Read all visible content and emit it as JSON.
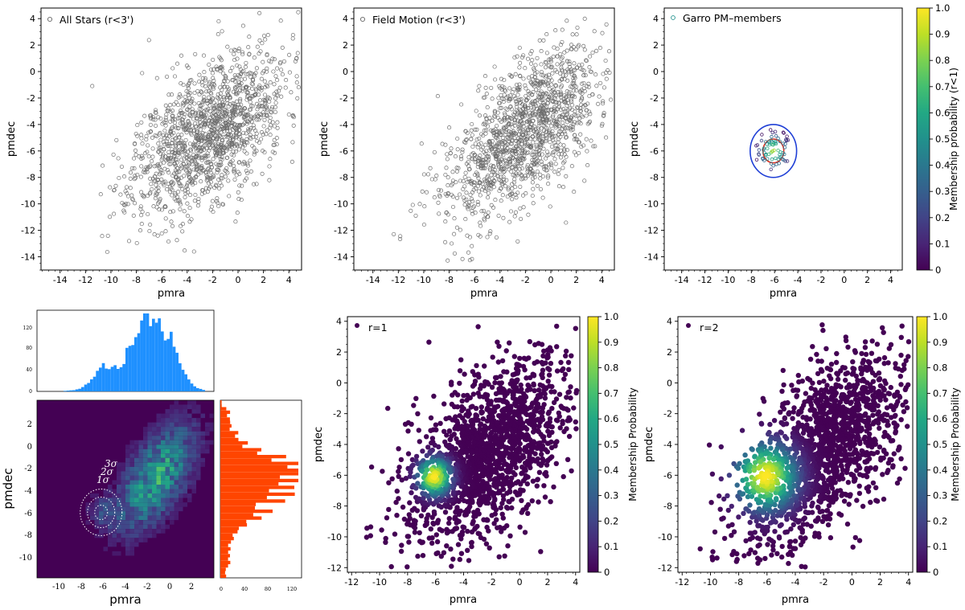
{
  "chart_data": [
    {
      "id": "p1",
      "type": "scatter",
      "legend": "All Stars (r<3')",
      "xlabel": "pmra",
      "ylabel": "pmdec",
      "xlim": [
        -15.5,
        5
      ],
      "ylim": [
        -15,
        4.8
      ],
      "xticks": [
        -14,
        -12,
        -10,
        -8,
        -6,
        -4,
        -2,
        0,
        2,
        4
      ],
      "yticks": [
        4,
        2,
        0,
        -2,
        -4,
        -6,
        -8,
        -10,
        -12,
        -14
      ],
      "cloud": {
        "n": 1500,
        "center": [
          -2.2,
          -4.6
        ],
        "sd": [
          3.0,
          3.1
        ],
        "corr": 0.55,
        "seed": 11
      },
      "marker": "open-circle-gray"
    },
    {
      "id": "p2",
      "type": "scatter",
      "legend": "Field Motion (r<3')",
      "xlabel": "pmra",
      "ylabel": "pmdec",
      "xlim": [
        -15.5,
        5
      ],
      "ylim": [
        -15,
        4.8
      ],
      "xticks": [
        -14,
        -12,
        -10,
        -8,
        -6,
        -4,
        -2,
        0,
        2,
        4
      ],
      "yticks": [
        4,
        2,
        0,
        -2,
        -4,
        -6,
        -8,
        -10,
        -12,
        -14
      ],
      "cloud": {
        "n": 1450,
        "center": [
          -2.0,
          -4.5
        ],
        "sd": [
          2.9,
          3.1
        ],
        "corr": 0.6,
        "seed": 22
      },
      "marker": "open-circle-gray"
    },
    {
      "id": "p3",
      "type": "scatter",
      "legend": "Garro PM–members",
      "xlabel": "pmra",
      "ylabel": "pmdec",
      "xlim": [
        -15.5,
        5
      ],
      "ylim": [
        -15,
        4.8
      ],
      "xticks": [
        -14,
        -12,
        -10,
        -8,
        -6,
        -4,
        -2,
        0,
        2,
        4
      ],
      "yticks": [
        4,
        2,
        0,
        -2,
        -4,
        -6,
        -8,
        -10,
        -12,
        -14
      ],
      "circles": [
        {
          "center": [
            -6.1,
            -6.0
          ],
          "radius": 2.0,
          "color": "#1f3fd6"
        },
        {
          "center": [
            -6.1,
            -6.0
          ],
          "radius": 0.9,
          "color": "#e03020"
        }
      ],
      "members": {
        "n": 85,
        "center": [
          -6.1,
          -6.0
        ],
        "sd": [
          0.8,
          0.8
        ],
        "seed": 33
      },
      "colorbar": {
        "label": "Membership probability (r<1)",
        "ticks": [
          "1.0",
          "0.9",
          "0.8",
          "0.7",
          "0.6",
          "0.5",
          "0.4",
          "0.3",
          "0.2",
          "0.1",
          "0"
        ]
      }
    },
    {
      "id": "p4_hist_top",
      "type": "bar",
      "color": "#1e90ff",
      "xlim": [
        -12,
        4
      ],
      "yticks": [
        "120",
        "80",
        "40",
        "0"
      ],
      "ylim": [
        0,
        150
      ]
    },
    {
      "id": "p4_main",
      "type": "heatmap",
      "xlabel": "pmra",
      "ylabel": "pmdec",
      "xlim": [
        -12,
        4
      ],
      "ylim": [
        -12,
        4
      ],
      "xticks": [
        "-10",
        "-8",
        "-6",
        "-4",
        "-2",
        "0",
        "2"
      ],
      "yticks": [
        "2",
        "0",
        "-2",
        "-4",
        "-6",
        "-8",
        "-10"
      ],
      "sigma_labels": [
        "3σ",
        "2σ",
        "1σ"
      ],
      "sigma_center": [
        -6.2,
        -6.1
      ]
    },
    {
      "id": "p4_hist_right",
      "type": "bar",
      "color": "#ff4500",
      "xticks": [
        "0",
        "40",
        "80",
        "120"
      ],
      "xlim": [
        0,
        135
      ]
    },
    {
      "id": "p5",
      "type": "scatter",
      "legend": "r=1",
      "xlabel": "pmra",
      "ylabel": "pmdec",
      "xlim": [
        -12.3,
        4.3
      ],
      "ylim": [
        -12.3,
        4.3
      ],
      "xticks": [
        -12,
        -10,
        -8,
        -6,
        -4,
        -2,
        0,
        2,
        4
      ],
      "yticks": [
        4,
        2,
        0,
        -2,
        -4,
        -6,
        -8,
        -10,
        -12
      ],
      "prob_center": [
        -6.1,
        -6.1
      ],
      "prob_scale": 1.1,
      "cloud": {
        "n": 1600,
        "center": [
          -2.2,
          -4.5
        ],
        "sd": [
          2.9,
          3.0
        ],
        "corr": 0.55,
        "seed": 44
      },
      "colorbar": {
        "label": "Membership Probability",
        "ticks": [
          "1.0",
          "0.9",
          "0.8",
          "0.7",
          "0.6",
          "0.5",
          "0.4",
          "0.3",
          "0.2",
          "0.1",
          "0"
        ]
      }
    },
    {
      "id": "p6",
      "type": "scatter",
      "legend": "r=2",
      "xlabel": "pmra",
      "ylabel": "pmdec",
      "xlim": [
        -12.3,
        4.3
      ],
      "ylim": [
        -12.3,
        4.3
      ],
      "xticks": [
        -12,
        -10,
        -8,
        -6,
        -4,
        -2,
        0,
        2,
        4
      ],
      "yticks": [
        4,
        2,
        0,
        -2,
        -4,
        -6,
        -8,
        -10,
        -12
      ],
      "prob_center": [
        -6.1,
        -6.1
      ],
      "prob_scale": 2.0,
      "cloud": {
        "n": 1600,
        "center": [
          -2.2,
          -4.5
        ],
        "sd": [
          2.9,
          3.0
        ],
        "corr": 0.55,
        "seed": 55
      },
      "colorbar": {
        "label": "Membership Probability",
        "ticks": [
          "1.0",
          "0.9",
          "0.8",
          "0.7",
          "0.6",
          "0.5",
          "0.4",
          "0.3",
          "0.2",
          "0.1",
          "0"
        ]
      }
    }
  ]
}
